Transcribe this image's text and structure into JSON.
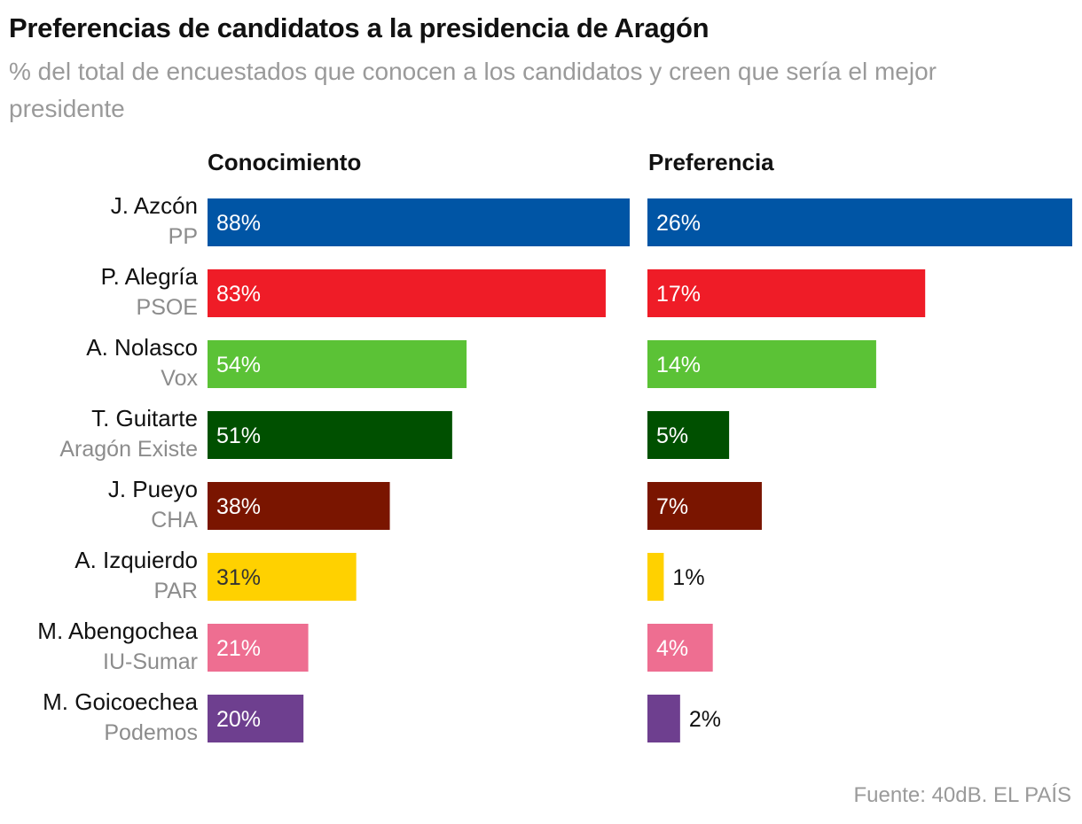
{
  "title": "Preferencias de candidatos a la presidencia de Aragón",
  "subtitle": "% del total de encuestados que conocen a los candidatos y creen que sería el mejor presidente",
  "source": "Fuente: 40dB. EL PAÍS",
  "chart_data": {
    "type": "bar",
    "orientation": "horizontal",
    "categories": [
      {
        "name": "J. Azcón",
        "party": "PP",
        "color": "#0055a5"
      },
      {
        "name": "P. Alegría",
        "party": "PSOE",
        "color": "#ef1c27"
      },
      {
        "name": "A. Nolasco",
        "party": "Vox",
        "color": "#5bc236"
      },
      {
        "name": "T. Guitarte",
        "party": "Aragón Existe",
        "color": "#005000"
      },
      {
        "name": "J. Pueyo",
        "party": "CHA",
        "color": "#7a1500"
      },
      {
        "name": "A. Izquierdo",
        "party": "PAR",
        "color": "#ffd100"
      },
      {
        "name": "M. Abengochea",
        "party": "IU-Sumar",
        "color": "#ee6e91"
      },
      {
        "name": "M. Goicoechea",
        "party": "Podemos",
        "color": "#6e3f8f"
      }
    ],
    "series": [
      {
        "name": "Conocimiento",
        "values": [
          88,
          83,
          54,
          51,
          38,
          31,
          21,
          20
        ],
        "max": 88
      },
      {
        "name": "Preferencia",
        "values": [
          26,
          17,
          14,
          5,
          7,
          1,
          4,
          2
        ],
        "max": 26
      }
    ],
    "value_suffix": "%",
    "grid": false,
    "legend": "none"
  }
}
